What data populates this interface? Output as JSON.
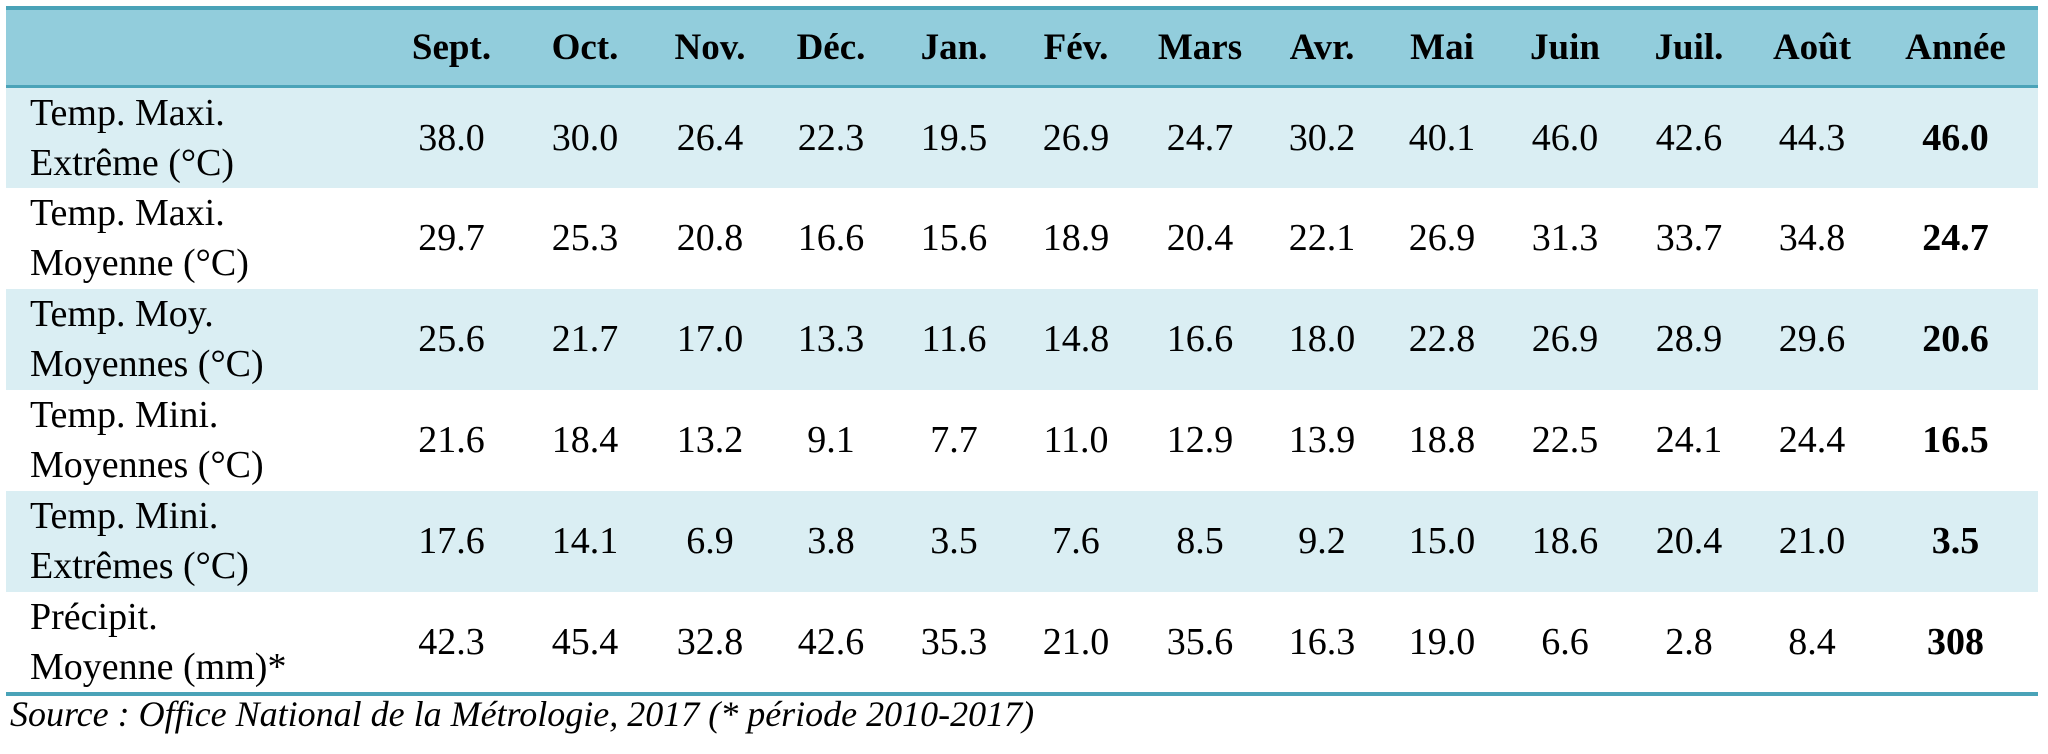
{
  "table": {
    "headers": [
      "",
      "Sept.",
      "Oct.",
      "Nov.",
      "Déc.",
      "Jan.",
      "Fév.",
      "Mars",
      "Avr.",
      "Mai",
      "Juin",
      "Juil.",
      "Août",
      "Année"
    ],
    "rows": [
      {
        "label": [
          "Temp. Maxi.",
          "Extrême (°C)"
        ],
        "values": [
          "38.0",
          "30.0",
          "26.4",
          "22.3",
          "19.5",
          "26.9",
          "24.7",
          "30.2",
          "40.1",
          "46.0",
          "42.6",
          "44.3"
        ],
        "annual": "46.0"
      },
      {
        "label": [
          "Temp. Maxi.",
          "Moyenne (°C)"
        ],
        "values": [
          "29.7",
          "25.3",
          "20.8",
          "16.6",
          "15.6",
          "18.9",
          "20.4",
          "22.1",
          "26.9",
          "31.3",
          "33.7",
          "34.8"
        ],
        "annual": "24.7"
      },
      {
        "label": [
          "Temp. Moy.",
          "Moyennes (°C)"
        ],
        "values": [
          "25.6",
          "21.7",
          "17.0",
          "13.3",
          "11.6",
          "14.8",
          "16.6",
          "18.0",
          "22.8",
          "26.9",
          "28.9",
          "29.6"
        ],
        "annual": "20.6"
      },
      {
        "label": [
          "Temp. Mini.",
          "Moyennes (°C)"
        ],
        "values": [
          "21.6",
          "18.4",
          "13.2",
          "9.1",
          "7.7",
          "11.0",
          "12.9",
          "13.9",
          "18.8",
          "22.5",
          "24.1",
          "24.4"
        ],
        "annual": "16.5"
      },
      {
        "label": [
          "Temp. Mini.",
          "Extrêmes (°C)"
        ],
        "values": [
          "17.6",
          "14.1",
          "6.9",
          "3.8",
          "3.5",
          "7.6",
          "8.5",
          "9.2",
          "15.0",
          "18.6",
          "20.4",
          "21.0"
        ],
        "annual": "3.5"
      },
      {
        "label": [
          "Précipit.",
          "Moyenne  (mm)*"
        ],
        "values": [
          "42.3",
          "45.4",
          "32.8",
          "42.6",
          "35.3",
          "21.0",
          "35.6",
          "16.3",
          "19.0",
          "6.6",
          "2.8",
          "8.4"
        ],
        "annual": "308"
      }
    ]
  },
  "source": "Source : Office National de la Métrologie, 2017 (* période 2010-2017)",
  "colors": {
    "header_bg": "#92cddc",
    "band_bg": "#daeef3",
    "rule": "#4aa3b8"
  }
}
